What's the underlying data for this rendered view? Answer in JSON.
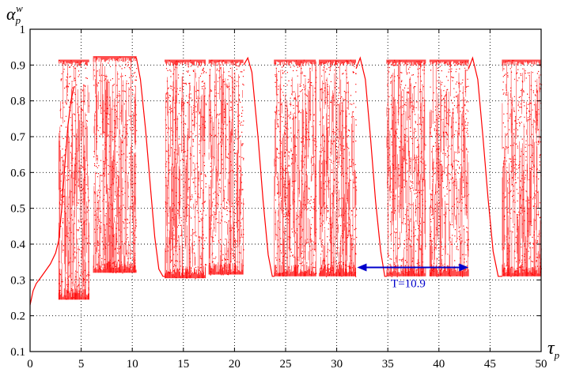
{
  "chart_data": {
    "type": "scatter",
    "xlim": [
      0,
      50
    ],
    "ylim": [
      0.1,
      1.0
    ],
    "x_ticks": [
      "0",
      "5",
      "10",
      "15",
      "20",
      "25",
      "30",
      "35",
      "40",
      "45",
      "50"
    ],
    "y_ticks": [
      "0.1",
      "0.2",
      "0.3",
      "0.4",
      "0.5",
      "0.6",
      "0.7",
      "0.8",
      "0.9",
      "1"
    ],
    "xlabel": {
      "base": "τ",
      "sub": "p"
    },
    "ylabel": {
      "base": "α",
      "sub": "p",
      "sup": "w"
    },
    "grid": true,
    "grid_style": "dotted",
    "colors": {
      "series": "#ff0000",
      "annotation": "#0000cc",
      "grid": "#000000"
    },
    "smooth_curve": [
      [
        0.0,
        0.23
      ],
      [
        0.3,
        0.27
      ],
      [
        0.6,
        0.29
      ],
      [
        1.0,
        0.305
      ],
      [
        1.5,
        0.325
      ],
      [
        2.0,
        0.345
      ],
      [
        2.5,
        0.375
      ],
      [
        2.8,
        0.41
      ],
      [
        3.1,
        0.5
      ],
      [
        3.4,
        0.62
      ],
      [
        3.7,
        0.73
      ],
      [
        4.0,
        0.8
      ],
      [
        4.3,
        0.84
      ]
    ],
    "chaotic_bands": [
      {
        "x": [
          2.8,
          5.8
        ],
        "y_min": 0.245,
        "y_max": 0.915
      },
      {
        "x": [
          6.2,
          10.4
        ],
        "y_min": 0.32,
        "y_max": 0.925
      },
      {
        "x": [
          13.2,
          17.2
        ],
        "y_min": 0.305,
        "y_max": 0.915
      },
      {
        "x": [
          17.5,
          20.9
        ],
        "y_min": 0.315,
        "y_max": 0.915
      },
      {
        "x": [
          23.9,
          28.0
        ],
        "y_min": 0.31,
        "y_max": 0.915
      },
      {
        "x": [
          28.3,
          31.9
        ],
        "y_min": 0.31,
        "y_max": 0.915
      },
      {
        "x": [
          34.9,
          38.7
        ],
        "y_min": 0.31,
        "y_max": 0.915
      },
      {
        "x": [
          39.1,
          42.9
        ],
        "y_min": 0.31,
        "y_max": 0.915
      },
      {
        "x": [
          46.2,
          50.0
        ],
        "y_min": 0.31,
        "y_max": 0.915
      }
    ],
    "windows": [
      [
        [
          10.4,
          0.92
        ],
        [
          10.8,
          0.86
        ],
        [
          11.3,
          0.72
        ],
        [
          11.8,
          0.55
        ],
        [
          12.2,
          0.42
        ],
        [
          12.6,
          0.33
        ],
        [
          13.0,
          0.31
        ],
        [
          13.2,
          0.31
        ]
      ],
      [
        [
          20.9,
          0.9
        ],
        [
          21.3,
          0.92
        ],
        [
          21.7,
          0.88
        ],
        [
          22.3,
          0.7
        ],
        [
          22.8,
          0.52
        ],
        [
          23.3,
          0.37
        ],
        [
          23.7,
          0.31
        ],
        [
          23.9,
          0.31
        ]
      ],
      [
        [
          31.9,
          0.89
        ],
        [
          32.3,
          0.92
        ],
        [
          32.8,
          0.86
        ],
        [
          33.3,
          0.7
        ],
        [
          33.8,
          0.52
        ],
        [
          34.3,
          0.38
        ],
        [
          34.7,
          0.31
        ],
        [
          34.9,
          0.31
        ]
      ],
      [
        [
          42.9,
          0.89
        ],
        [
          43.3,
          0.92
        ],
        [
          43.8,
          0.86
        ],
        [
          44.3,
          0.7
        ],
        [
          44.8,
          0.53
        ],
        [
          45.3,
          0.38
        ],
        [
          45.8,
          0.31
        ],
        [
          46.2,
          0.31
        ]
      ]
    ],
    "annotations": [
      {
        "text": "T=10.9",
        "arrow_x": [
          32.0,
          42.9
        ],
        "arrow_y": 0.335,
        "label_x": 35.3,
        "label_y": 0.28
      }
    ]
  }
}
